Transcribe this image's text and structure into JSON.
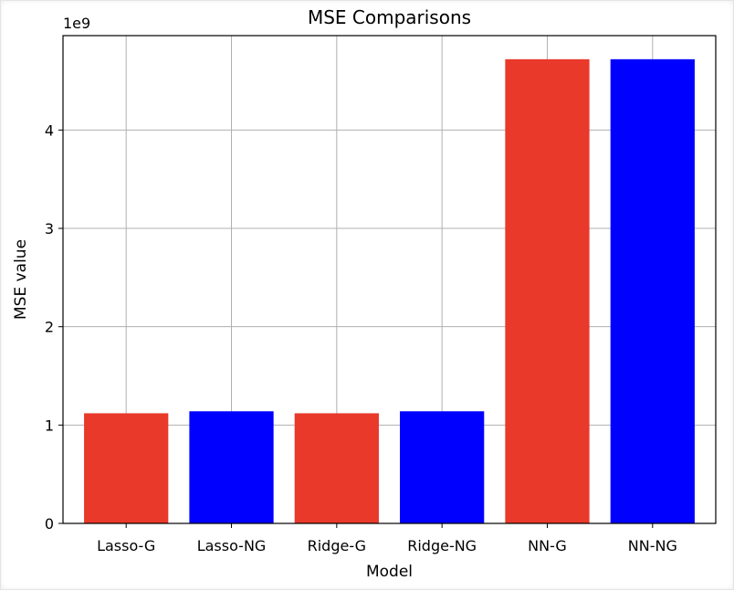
{
  "chart_data": {
    "type": "bar",
    "title": "MSE Comparisons",
    "xlabel": "Model",
    "ylabel": "MSE value",
    "y_offset_label": "1e9",
    "categories": [
      "Lasso-G",
      "Lasso-NG",
      "Ridge-G",
      "Ridge-NG",
      "NN-G",
      "NN-NG"
    ],
    "values": [
      1120000000.0,
      1140000000.0,
      1120000000.0,
      1140000000.0,
      4720000000.0,
      4720000000.0
    ],
    "bar_colors": [
      "#e8392a",
      "#0000ff",
      "#e8392a",
      "#0000ff",
      "#e8392a",
      "#0000ff"
    ],
    "ylim": [
      0,
      4960000000.0
    ],
    "y_ticks": [
      0,
      1000000000.0,
      2000000000.0,
      3000000000.0,
      4000000000.0
    ],
    "y_tick_labels": [
      "0",
      "1",
      "2",
      "3",
      "4"
    ],
    "grid": true,
    "legend": "none"
  }
}
